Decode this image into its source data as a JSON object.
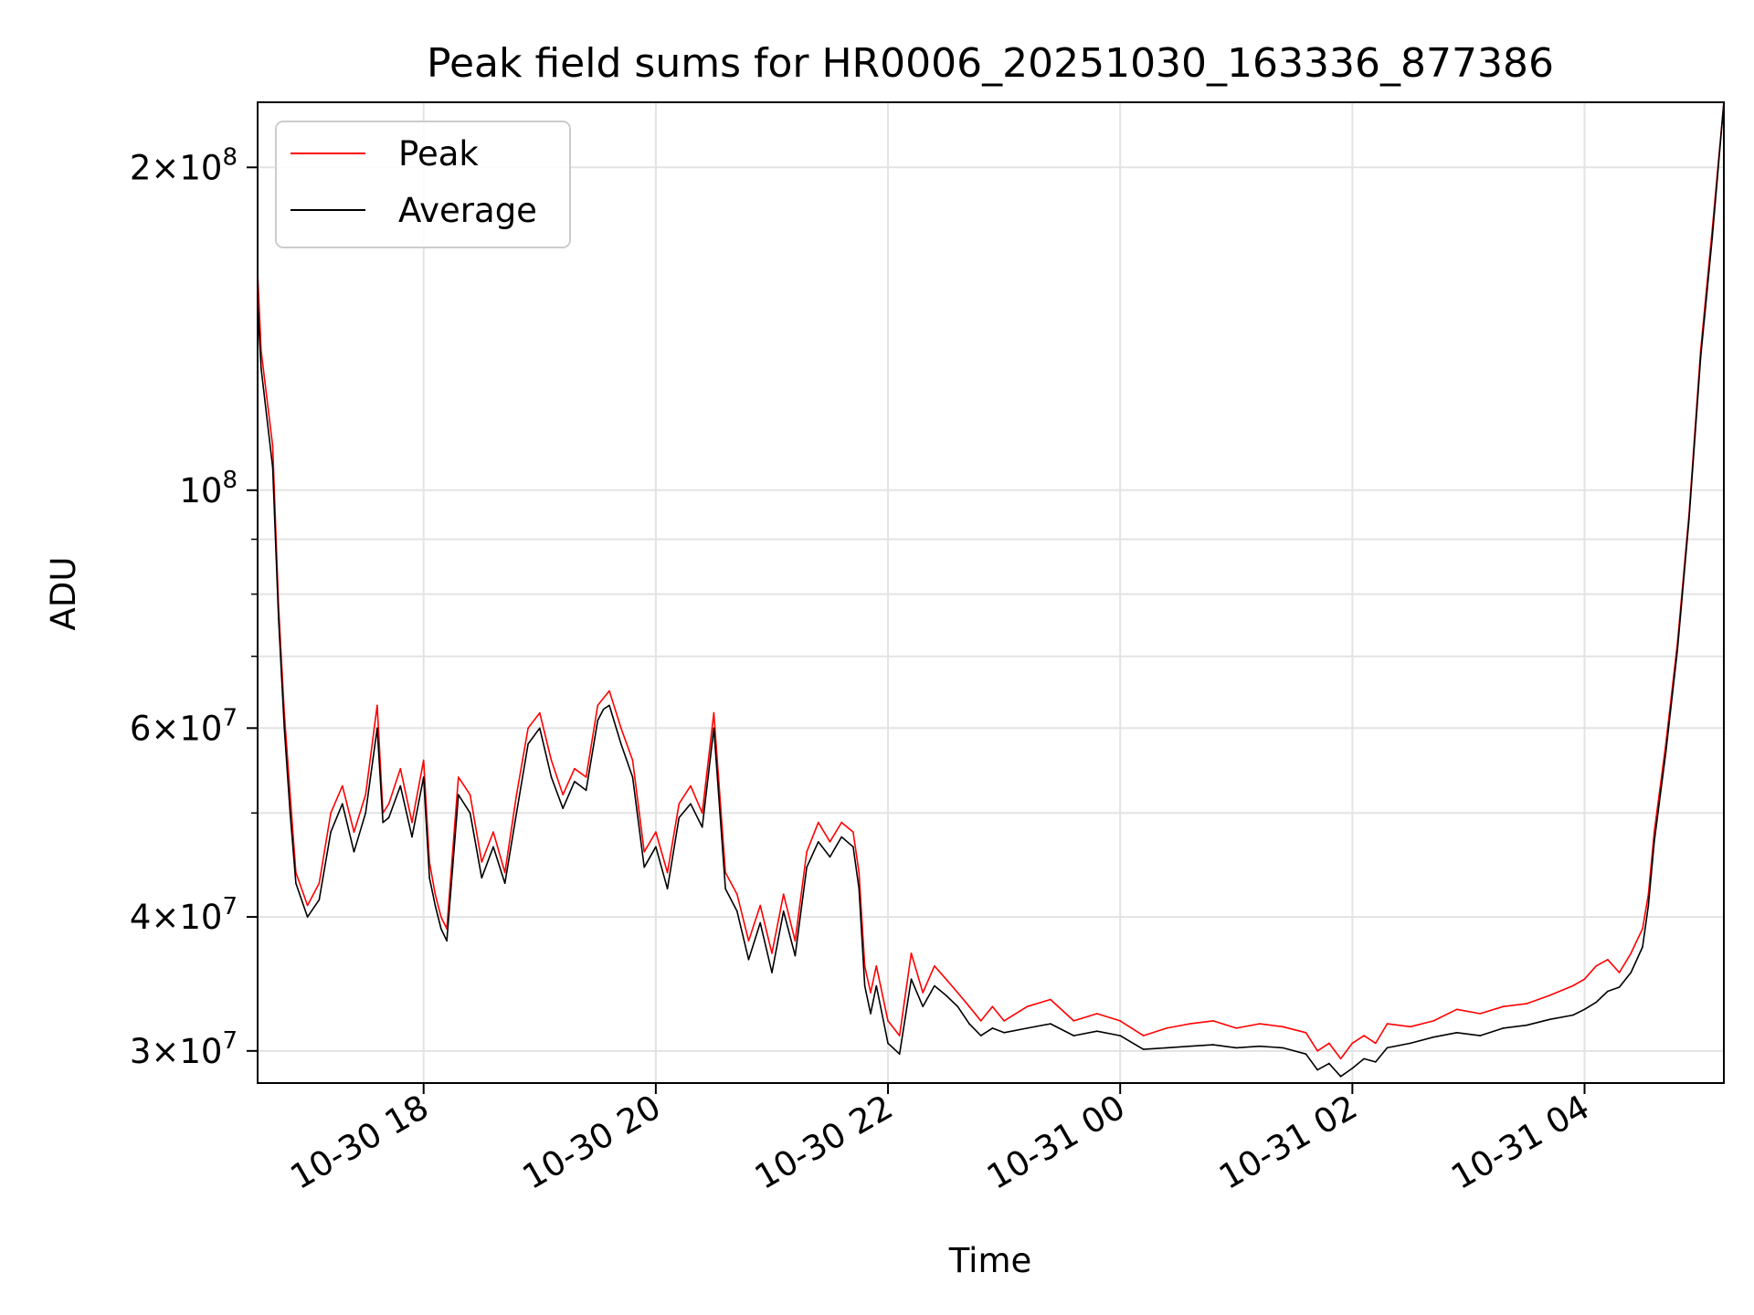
{
  "chart_data": {
    "type": "line",
    "title": "Peak field sums for HR0006_20251030_163336_877386",
    "xlabel": "Time",
    "ylabel": "ADU",
    "yscale": "log",
    "xlim": [
      16.57,
      29.2
    ],
    "ylim": [
      28000000,
      230000000
    ],
    "grid": true,
    "legend_position": "upper-left",
    "x_unit": "hours since 2025-10-30 00:00",
    "x_ticks": [
      {
        "value": 18,
        "label": "10-30 18"
      },
      {
        "value": 20,
        "label": "10-30 20"
      },
      {
        "value": 22,
        "label": "10-30 22"
      },
      {
        "value": 24,
        "label": "10-31 00"
      },
      {
        "value": 26,
        "label": "10-31 02"
      },
      {
        "value": 28,
        "label": "10-31 04"
      }
    ],
    "y_ticks": [
      {
        "value": 30000000,
        "base": "3×10",
        "exp": "7"
      },
      {
        "value": 40000000,
        "base": "4×10",
        "exp": "7"
      },
      {
        "value": 60000000,
        "base": "6×10",
        "exp": "7"
      },
      {
        "value": 100000000,
        "base": "10",
        "exp": "8"
      },
      {
        "value": 200000000,
        "base": "2×10",
        "exp": "8"
      }
    ],
    "y_minor_ticks": [
      50000000,
      70000000,
      80000000,
      90000000
    ],
    "series": [
      {
        "name": "Peak",
        "color": "#ff0000",
        "x": [
          16.57,
          16.6,
          16.7,
          16.75,
          16.8,
          16.85,
          16.9,
          17.0,
          17.1,
          17.2,
          17.3,
          17.4,
          17.5,
          17.6,
          17.65,
          17.7,
          17.8,
          17.9,
          18.0,
          18.05,
          18.1,
          18.15,
          18.2,
          18.25,
          18.3,
          18.4,
          18.5,
          18.6,
          18.7,
          18.8,
          18.9,
          19.0,
          19.1,
          19.2,
          19.3,
          19.4,
          19.5,
          19.55,
          19.6,
          19.7,
          19.8,
          19.9,
          20.0,
          20.1,
          20.2,
          20.3,
          20.4,
          20.5,
          20.6,
          20.7,
          20.8,
          20.9,
          21.0,
          21.1,
          21.2,
          21.3,
          21.4,
          21.5,
          21.6,
          21.7,
          21.75,
          21.8,
          21.85,
          21.9,
          22.0,
          22.1,
          22.2,
          22.3,
          22.4,
          22.5,
          22.6,
          22.7,
          22.8,
          22.9,
          23.0,
          23.2,
          23.4,
          23.6,
          23.8,
          24.0,
          24.2,
          24.4,
          24.6,
          24.8,
          25.0,
          25.2,
          25.4,
          25.6,
          25.7,
          25.8,
          25.9,
          26.0,
          26.1,
          26.2,
          26.3,
          26.5,
          26.7,
          26.9,
          27.1,
          27.3,
          27.5,
          27.7,
          27.9,
          28.0,
          28.1,
          28.2,
          28.3,
          28.4,
          28.5,
          28.55,
          28.6,
          28.7,
          28.8,
          28.9,
          29.0,
          29.1,
          29.2
        ],
        "values": [
          160000000,
          135000000,
          110000000,
          78000000,
          62000000,
          52000000,
          44000000,
          41000000,
          43000000,
          50000000,
          53000000,
          48000000,
          52000000,
          63000000,
          50000000,
          51000000,
          55000000,
          49000000,
          56000000,
          45000000,
          42000000,
          40000000,
          39000000,
          46000000,
          54000000,
          52000000,
          45000000,
          48000000,
          44000000,
          52000000,
          60000000,
          62000000,
          56000000,
          52000000,
          55000000,
          54000000,
          63000000,
          64000000,
          65000000,
          60000000,
          56000000,
          46000000,
          48000000,
          44000000,
          51000000,
          53000000,
          50000000,
          62000000,
          44000000,
          42000000,
          38000000,
          41000000,
          37000000,
          42000000,
          38000000,
          46000000,
          49000000,
          47000000,
          49000000,
          48000000,
          44000000,
          36000000,
          34000000,
          36000000,
          32000000,
          31000000,
          37000000,
          34000000,
          36000000,
          35000000,
          34000000,
          33000000,
          32000000,
          33000000,
          32000000,
          33000000,
          33500000,
          32000000,
          32500000,
          32000000,
          31000000,
          31500000,
          31800000,
          32000000,
          31500000,
          31800000,
          31600000,
          31200000,
          30000000,
          30500000,
          29500000,
          30500000,
          31000000,
          30500000,
          31800000,
          31600000,
          32000000,
          32800000,
          32500000,
          33000000,
          33200000,
          33800000,
          34500000,
          35000000,
          36000000,
          36500000,
          35500000,
          37000000,
          39000000,
          42000000,
          48000000,
          58000000,
          72000000,
          95000000,
          135000000,
          175000000,
          230000000
        ]
      },
      {
        "name": "Average",
        "color": "#000000",
        "x": [
          16.57,
          16.6,
          16.7,
          16.75,
          16.8,
          16.85,
          16.9,
          17.0,
          17.1,
          17.2,
          17.3,
          17.4,
          17.5,
          17.6,
          17.65,
          17.7,
          17.8,
          17.9,
          18.0,
          18.05,
          18.1,
          18.15,
          18.2,
          18.25,
          18.3,
          18.4,
          18.5,
          18.6,
          18.7,
          18.8,
          18.9,
          19.0,
          19.1,
          19.2,
          19.3,
          19.4,
          19.5,
          19.55,
          19.6,
          19.7,
          19.8,
          19.9,
          20.0,
          20.1,
          20.2,
          20.3,
          20.4,
          20.5,
          20.6,
          20.7,
          20.8,
          20.9,
          21.0,
          21.1,
          21.2,
          21.3,
          21.4,
          21.5,
          21.6,
          21.7,
          21.75,
          21.8,
          21.85,
          21.9,
          22.0,
          22.1,
          22.2,
          22.3,
          22.4,
          22.5,
          22.6,
          22.7,
          22.8,
          22.9,
          23.0,
          23.2,
          23.4,
          23.6,
          23.8,
          24.0,
          24.2,
          24.4,
          24.6,
          24.8,
          25.0,
          25.2,
          25.4,
          25.6,
          25.7,
          25.8,
          25.9,
          26.0,
          26.1,
          26.2,
          26.3,
          26.5,
          26.7,
          26.9,
          27.1,
          27.3,
          27.5,
          27.7,
          27.9,
          28.0,
          28.1,
          28.2,
          28.3,
          28.4,
          28.5,
          28.55,
          28.6,
          28.7,
          28.8,
          28.9,
          29.0,
          29.1,
          29.2
        ],
        "values": [
          150000000,
          130000000,
          105000000,
          76000000,
          60000000,
          50000000,
          43000000,
          40000000,
          41500000,
          48000000,
          51000000,
          46000000,
          50000000,
          60000000,
          49000000,
          49500000,
          53000000,
          47500000,
          54000000,
          43500000,
          41000000,
          39000000,
          38000000,
          44500000,
          52000000,
          50000000,
          43500000,
          46500000,
          43000000,
          50000000,
          58000000,
          60000000,
          54000000,
          50500000,
          53500000,
          52500000,
          61000000,
          62500000,
          63000000,
          58000000,
          54000000,
          44500000,
          46500000,
          42500000,
          49500000,
          51000000,
          48500000,
          60000000,
          42500000,
          40500000,
          36500000,
          39500000,
          35500000,
          40500000,
          36800000,
          44500000,
          47000000,
          45500000,
          47500000,
          46500000,
          42500000,
          34500000,
          32500000,
          34500000,
          30500000,
          29800000,
          35000000,
          33000000,
          34500000,
          33800000,
          33000000,
          31800000,
          31000000,
          31500000,
          31200000,
          31500000,
          31800000,
          31000000,
          31300000,
          31000000,
          30100000,
          30200000,
          30300000,
          30400000,
          30200000,
          30300000,
          30200000,
          29800000,
          28800000,
          29200000,
          28400000,
          28900000,
          29500000,
          29300000,
          30200000,
          30500000,
          30900000,
          31200000,
          31000000,
          31500000,
          31700000,
          32100000,
          32400000,
          32800000,
          33300000,
          34100000,
          34400000,
          35500000,
          37500000,
          41000000,
          47000000,
          57000000,
          71000000,
          94000000,
          133000000,
          172000000,
          230000000
        ]
      }
    ]
  }
}
